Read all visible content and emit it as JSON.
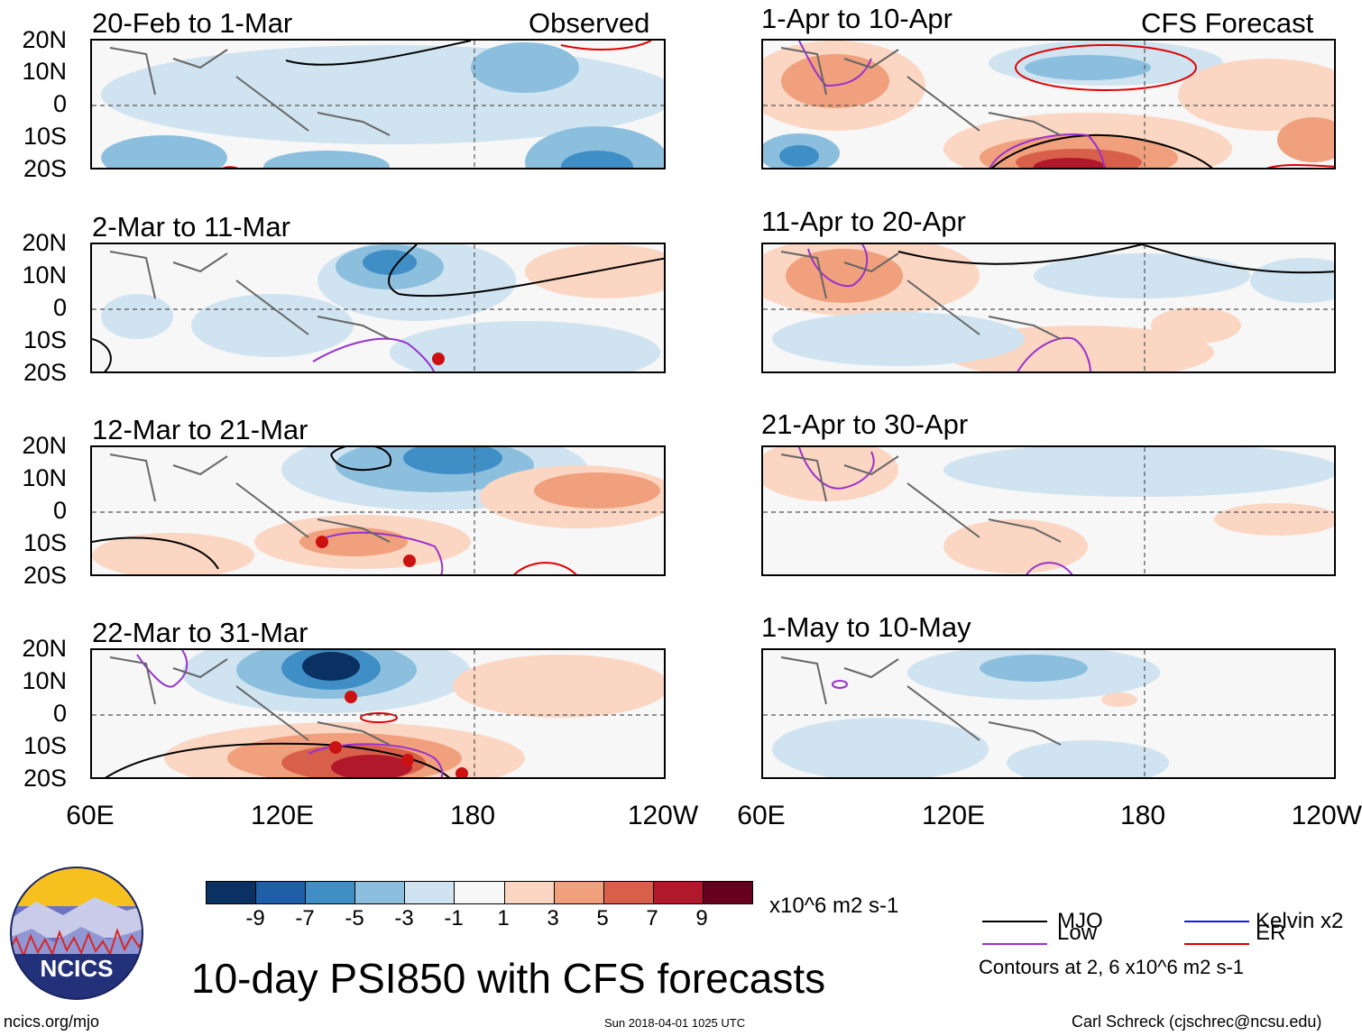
{
  "panel_labels": {
    "left": "Observed",
    "right": "CFS Forecast"
  },
  "chart_data": {
    "type": "contour-map",
    "title": "10-day PSI850 with CFS forecasts",
    "variable": "PSI850",
    "units": "x10^6 m2 s-1",
    "panels": [
      {
        "title": "20-Feb to 1-Mar",
        "source": "Observed"
      },
      {
        "title": "2-Mar to 11-Mar",
        "source": "Observed"
      },
      {
        "title": "12-Mar to 21-Mar",
        "source": "Observed"
      },
      {
        "title": "22-Mar to 31-Mar",
        "source": "Observed"
      },
      {
        "title": "1-Apr to 10-Apr",
        "source": "CFS Forecast"
      },
      {
        "title": "11-Apr to 20-Apr",
        "source": "CFS Forecast"
      },
      {
        "title": "21-Apr to 30-Apr",
        "source": "CFS Forecast"
      },
      {
        "title": "1-May to 10-May",
        "source": "CFS Forecast"
      }
    ],
    "lat_ticks": [
      "20N",
      "10N",
      "0",
      "10S",
      "20S"
    ],
    "lon_ticks": [
      "60E",
      "120E",
      "180",
      "120W"
    ],
    "colorbar": {
      "tick_labels": [
        "-9",
        "-7",
        "-5",
        "-3",
        "-1",
        "1",
        "3",
        "5",
        "7",
        "9"
      ],
      "colors": [
        "#0a3161",
        "#1e5fa8",
        "#3f8ec6",
        "#8cbfde",
        "#cfe3f0",
        "#f7f7f7",
        "#fbd6c2",
        "#f0a07c",
        "#d8604a",
        "#b2182b",
        "#67001f"
      ],
      "units_label": "x10^6 m2 s-1"
    },
    "legend": [
      {
        "label": "MJO",
        "color": "#000000"
      },
      {
        "label": "Kelvin x2",
        "color": "#1a1adb"
      },
      {
        "label": "Low",
        "color": "#9932cc"
      },
      {
        "label": "ER",
        "color": "#e00000"
      }
    ],
    "contour_note": "Contours at 2, 6 x10^6 m2 s-1"
  },
  "logo": {
    "text": "NCICS"
  },
  "footer": {
    "site": "ncics.org/mjo",
    "timestamp": "Sun 2018-04-01 1025 UTC",
    "credit": "Carl Schreck (cjschrec@ncsu.edu)"
  }
}
